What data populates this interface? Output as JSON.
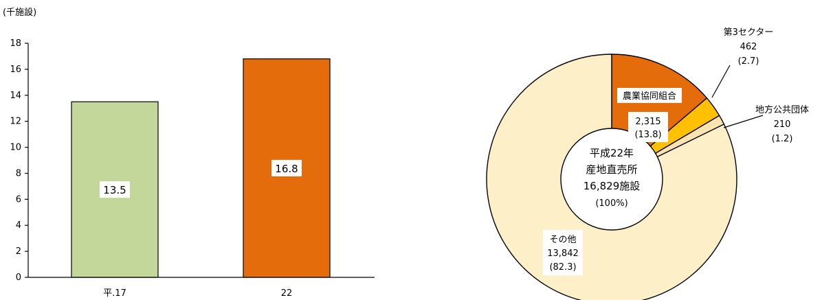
{
  "chart_data": [
    {
      "type": "bar",
      "unit_label": "(千施設)",
      "categories": [
        "平.17",
        "22"
      ],
      "values": [
        13.5,
        16.8
      ],
      "data_labels": [
        "13.5",
        "16.8"
      ],
      "bar_colors": [
        "#c4d79b",
        "#e46c0a"
      ],
      "ylim": [
        0,
        18
      ],
      "yticks": [
        "0",
        "2",
        "4",
        "6",
        "8",
        "10",
        "12",
        "14",
        "16",
        "18"
      ],
      "grid": false
    },
    {
      "type": "pie",
      "style": "donut",
      "center_label": [
        "平成22年",
        "産地直売所",
        "16,829施設",
        "(100%)"
      ],
      "slices": [
        {
          "label": "農業協同組合",
          "value": 2315,
          "value_text": "2,315",
          "percent_text": "(13.8)",
          "color": "#e46c0a"
        },
        {
          "label": "第3セクター",
          "value": 462,
          "value_text": "462",
          "percent_text": "(2.7)",
          "color": "#ffc000"
        },
        {
          "label": "地方公共団体",
          "value": 210,
          "value_text": "210",
          "percent_text": "(1.2)",
          "color": "#fce4b0"
        },
        {
          "label": "その他",
          "value": 13842,
          "value_text": "13,842",
          "percent_text": "(82.3)",
          "color": "#fdf0c8"
        }
      ]
    }
  ]
}
